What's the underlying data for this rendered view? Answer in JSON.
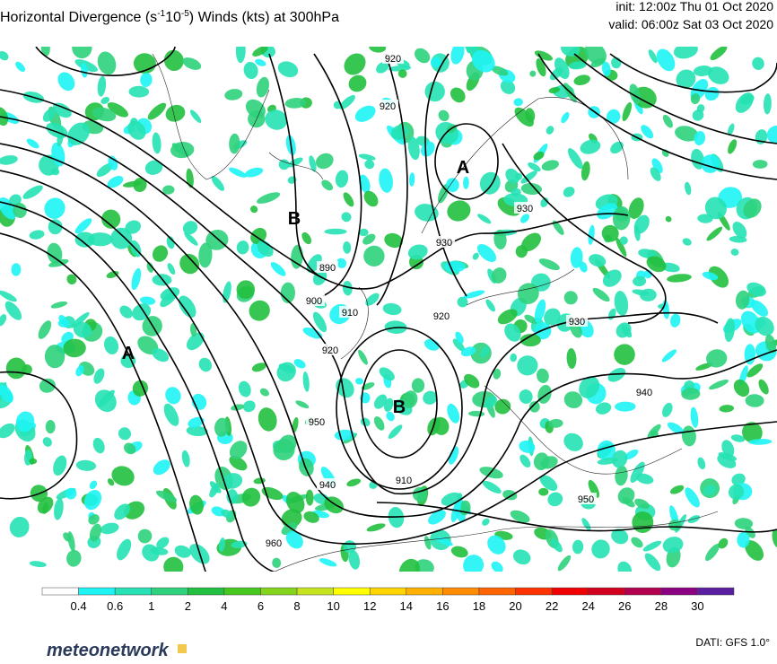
{
  "header": {
    "title_parts": [
      "Horizontal Divergence (s",
      "-1",
      "10",
      "-5",
      ") Winds (kts) at 300hPa"
    ],
    "init": "init: 12:00z Thu 01 Oct 2020",
    "valid": "valid: 06:00z Sat 03 Oct 2020"
  },
  "map": {
    "contour_labels": [
      "920",
      "930",
      "890",
      "900",
      "910",
      "920",
      "920",
      "930",
      "940",
      "950",
      "960",
      "950",
      "940",
      "930",
      "910",
      "920"
    ],
    "centers": [
      "A",
      "A",
      "B",
      "B"
    ]
  },
  "colorbar": {
    "colors": [
      "#ffffff",
      "#1ef4f4",
      "#26e2b4",
      "#2ed27c",
      "#22c040",
      "#46c81e",
      "#84d41e",
      "#c6e41e",
      "#ffff00",
      "#ffd400",
      "#ffb000",
      "#ff8c00",
      "#ff6400",
      "#ff3200",
      "#f00000",
      "#d2001e",
      "#b40050",
      "#8c0082",
      "#5a1ea0"
    ],
    "labels": [
      0.4,
      0.6,
      1,
      2,
      4,
      6,
      8,
      10,
      12,
      14,
      16,
      18,
      20,
      22,
      24,
      26,
      28,
      30
    ]
  },
  "footer": {
    "brand": "meteonetwork",
    "source": "DATI: GFS 1.0°"
  }
}
